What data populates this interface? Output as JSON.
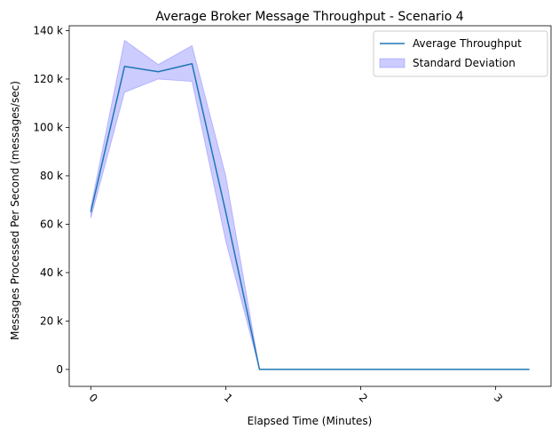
{
  "chart_data": {
    "type": "line",
    "title": "Average Broker Message Throughput - Scenario 4",
    "xlabel": "Elapsed Time (Minutes)",
    "ylabel": "Messages Processed Per Second (messages/sec)",
    "xlim": [
      -0.16,
      3.41
    ],
    "ylim": [
      -7000,
      142000
    ],
    "x_ticks": [
      {
        "value": 0,
        "label": "0"
      },
      {
        "value": 1,
        "label": "1"
      },
      {
        "value": 2,
        "label": "2"
      },
      {
        "value": 3,
        "label": "3"
      }
    ],
    "y_ticks": [
      {
        "value": 0,
        "label": "0"
      },
      {
        "value": 20000,
        "label": "20 k"
      },
      {
        "value": 40000,
        "label": "40 k"
      },
      {
        "value": 60000,
        "label": "60 k"
      },
      {
        "value": 80000,
        "label": "80 k"
      },
      {
        "value": 100000,
        "label": "100 k"
      },
      {
        "value": 120000,
        "label": "120 k"
      },
      {
        "value": 140000,
        "label": "140 k"
      }
    ],
    "x": [
      0,
      0.25,
      0.5,
      0.75,
      1.0,
      1.25,
      1.5,
      1.75,
      2.0,
      2.25,
      2.5,
      2.75,
      3.0,
      3.25
    ],
    "series": [
      {
        "name": "Average Throughput",
        "color": "#1f77b4",
        "values": [
          65000,
          125200,
          123000,
          126300,
          65000,
          0,
          0,
          0,
          0,
          0,
          0,
          0,
          0,
          0
        ]
      }
    ],
    "band": {
      "name": "Standard Deviation",
      "color": "#0000ff",
      "lower": [
        62500,
        114500,
        120000,
        119000,
        53000,
        0,
        0,
        0,
        0,
        0,
        0,
        0,
        0,
        0
      ],
      "upper": [
        67000,
        136000,
        126000,
        133800,
        80000,
        0,
        0,
        0,
        0,
        0,
        0,
        0,
        0,
        0
      ]
    },
    "legend_position": "top-right",
    "grid": false
  }
}
